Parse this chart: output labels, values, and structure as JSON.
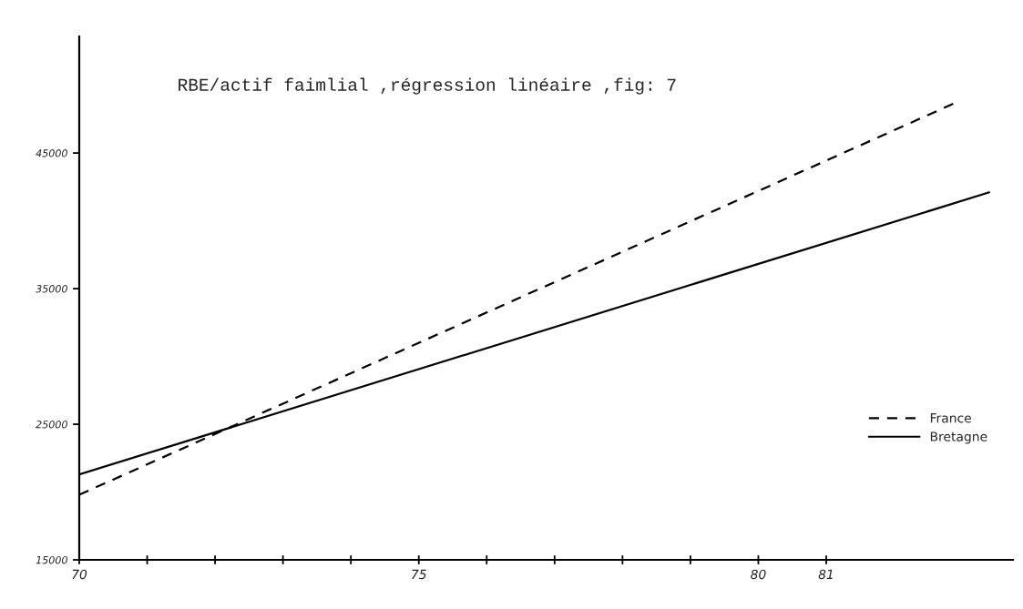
{
  "chart_data": {
    "type": "line",
    "title": "RBE/actif faimlial ,régression linéaire ,fig: 7",
    "series": [
      {
        "name": "France",
        "color": "#000000",
        "line_style": "dashed",
        "x": [
          70,
          82.9
        ],
        "values": [
          19800,
          48700
        ]
      },
      {
        "name": "Bretagne",
        "color": "#000000",
        "line_style": "solid",
        "x": [
          70,
          83.4
        ],
        "values": [
          21300,
          42100
        ]
      }
    ],
    "xlim": [
      70,
      83.75
    ],
    "xticks": [
      70,
      {
        "value": 71,
        "label": null
      },
      {
        "value": 72,
        "label": null
      },
      {
        "value": 73,
        "label": null
      },
      {
        "value": 74,
        "label": null
      },
      75,
      {
        "value": 76,
        "label": null
      },
      {
        "value": 77,
        "label": null
      },
      {
        "value": 78,
        "label": null
      },
      {
        "value": 79,
        "label": null
      },
      80,
      81
    ],
    "ylim": [
      15000,
      53600
    ],
    "yticks": [
      15000,
      25000,
      35000,
      45000
    ],
    "legend": "bottom right"
  }
}
